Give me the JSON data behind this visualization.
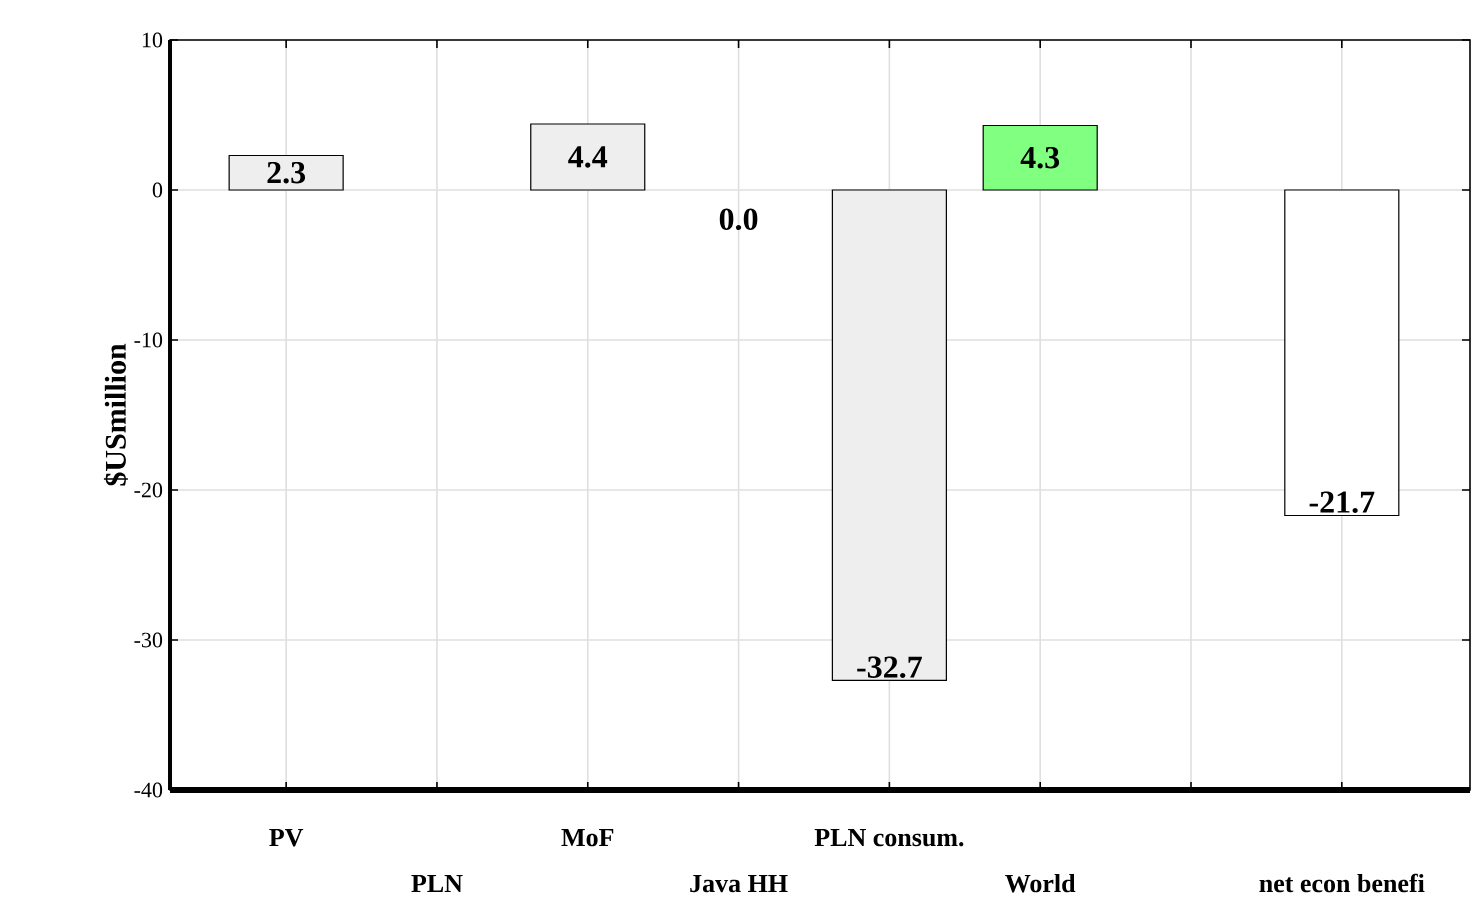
{
  "chart_data": {
    "type": "bar",
    "ylabel": "$USmillion",
    "categories": [
      "PV",
      "PLN",
      "MoF",
      "Java HH",
      "PLN consum.",
      "World",
      null,
      "net econ benefi"
    ],
    "values": [
      2.3,
      null,
      4.4,
      0.0,
      -32.7,
      4.3,
      null,
      -21.7
    ],
    "value_labels": [
      "2.3",
      null,
      "4.4",
      "0.0",
      "-32.7",
      "4.3",
      null,
      "-21.7"
    ],
    "colors": [
      "#eeeeee",
      "#eeeeee",
      "#eeeeee",
      "#eeeeee",
      "#eeeeee",
      "#80ff80",
      "#eeeeee",
      "#ffffff"
    ],
    "ylim": [
      -40,
      10
    ],
    "yticks": [
      -40,
      -30,
      -20,
      -10,
      0,
      10
    ],
    "grid": true
  }
}
